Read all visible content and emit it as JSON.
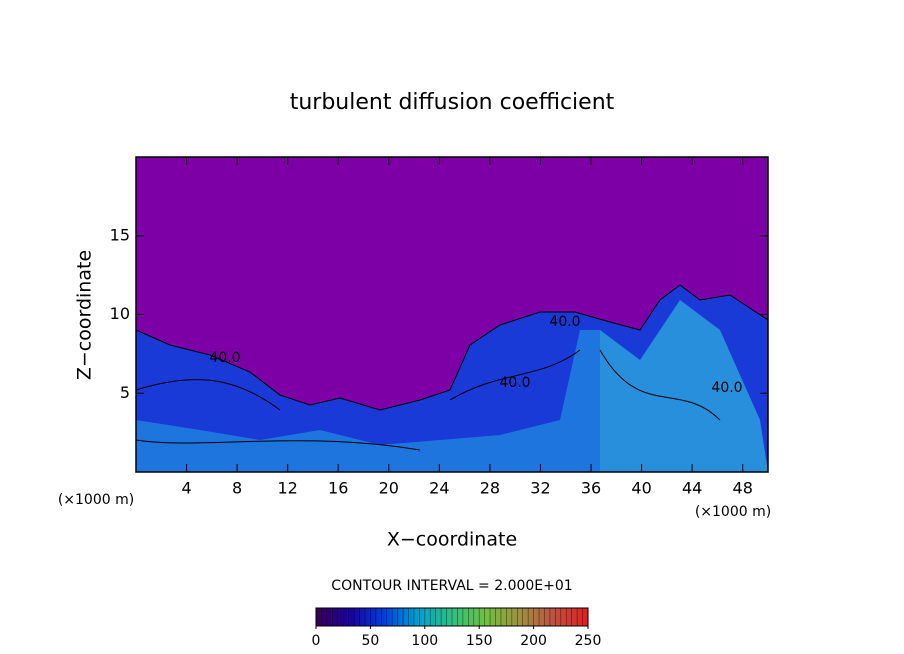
{
  "chart_data": {
    "type": "contour",
    "title": "turbulent diffusion coefficient",
    "xlabel": "X−coordinate",
    "ylabel": "Z−coordinate",
    "x_unit": "(×1000 m)",
    "y_unit": "(×1000 m)",
    "xlim": [
      0,
      50
    ],
    "ylim": [
      0,
      20
    ],
    "xticks": [
      4,
      8,
      12,
      16,
      20,
      24,
      28,
      32,
      36,
      40,
      44,
      48
    ],
    "yticks": [
      5,
      10,
      15
    ],
    "contour_labels": [
      "40.0",
      "40.0",
      "40.0",
      "40.0"
    ],
    "contour_interval": "CONTOUR INTERVAL = 2.000E+01",
    "background_color": "#7d00a6",
    "clim": [
      0,
      250
    ],
    "colorbar_ticks": [
      0,
      50,
      100,
      150,
      200,
      250
    ],
    "colormap": [
      "#3a0050",
      "#1a00a0",
      "#0040e0",
      "#00a0d0",
      "#30c080",
      "#70c040",
      "#a09040",
      "#c05040",
      "#e02020"
    ]
  }
}
